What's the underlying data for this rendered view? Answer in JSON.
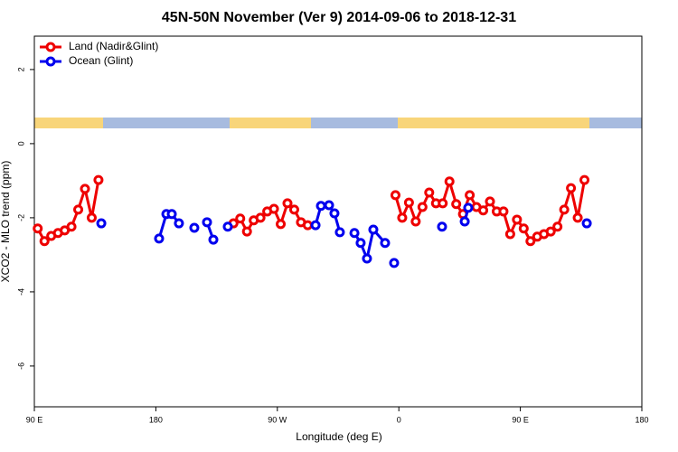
{
  "chart_data": {
    "type": "line",
    "title": "45N-50N November (Ver 9)   2014-09-06 to 2018-12-31",
    "x_label": "Longitude (deg E)",
    "y_label": "XCO2 - MLO trend (ppm)",
    "xlim": [
      90,
      540
    ],
    "xticks": [
      {
        "value": 90,
        "label": "90 E"
      },
      180,
      {
        "value": 270,
        "label": "90 W"
      },
      0,
      {
        "value": 450,
        "label": "90 E"
      },
      {
        "value": 540,
        "label": "180"
      }
    ],
    "ylim": [
      -7.1,
      2.9
    ],
    "yticks": [
      2,
      0,
      -2,
      -4,
      -6
    ],
    "legend": "top-left",
    "series": [
      {
        "name": "Land (Nadir&Glint)",
        "color": "#ee0000",
        "x": [
          92.5,
          97.5,
          102.5,
          107.5,
          112.5,
          117.5,
          122.5,
          127.5,
          132.5,
          137.5,
          null,
          237.5,
          242.5,
          247.5,
          252.5,
          257.5,
          262.5,
          267.5,
          272.5,
          277.5,
          282.5,
          287.5,
          292.5,
          null,
          357.5,
          362.5,
          367.5,
          372.5,
          377.5,
          382.5,
          387.5,
          392.5,
          397.5,
          402.5,
          407.5,
          412.5,
          417.5,
          422.5,
          427.5,
          432.5,
          437.5,
          442.5,
          447.5,
          452.5,
          457.5,
          462.5,
          467.5,
          472.5,
          477.5,
          482.5,
          487.5,
          492.5,
          497.5
        ],
        "values": [
          -2.29,
          -2.63,
          -2.49,
          -2.41,
          -2.34,
          -2.24,
          -1.78,
          -1.22,
          -2.0,
          -0.98,
          null,
          -2.15,
          -2.02,
          -2.37,
          -2.07,
          -2.0,
          -1.83,
          -1.76,
          -2.17,
          -1.61,
          -1.78,
          -2.12,
          -2.2,
          null,
          -1.39,
          -2.0,
          -1.59,
          -2.1,
          -1.71,
          -1.32,
          -1.61,
          -1.61,
          -1.02,
          -1.63,
          -1.9,
          -1.39,
          -1.71,
          -1.8,
          -1.56,
          -1.83,
          -1.83,
          -2.44,
          -2.05,
          -2.29,
          -2.63,
          -2.51,
          -2.44,
          -2.37,
          -2.24,
          -1.78,
          -1.2,
          -2.0,
          -0.98
        ]
      },
      {
        "name": "Ocean (Glint)",
        "color": "#0000ee",
        "x": [
          139.6,
          null,
          182.4,
          187.8,
          191.8,
          197.1,
          null,
          208.5,
          null,
          217.9,
          222.6,
          null,
          233.3,
          null,
          298.3,
          302.3,
          308.3,
          312.3,
          316.3,
          null,
          327.1,
          331.7,
          336.4,
          341.1,
          349.8,
          null,
          356.5,
          null,
          392.0,
          null,
          408.8,
          411.4,
          null,
          499.2
        ],
        "values": [
          -2.15,
          null,
          -2.56,
          -1.9,
          -1.9,
          -2.15,
          null,
          -2.27,
          null,
          -2.12,
          -2.59,
          null,
          -2.24,
          null,
          -2.2,
          -1.68,
          -1.66,
          -1.88,
          -2.39,
          null,
          -2.41,
          -2.68,
          -3.1,
          -2.32,
          -2.68,
          null,
          -3.22,
          null,
          -2.24,
          null,
          -2.1,
          -1.73,
          null,
          -2.15
        ]
      }
    ]
  }
}
